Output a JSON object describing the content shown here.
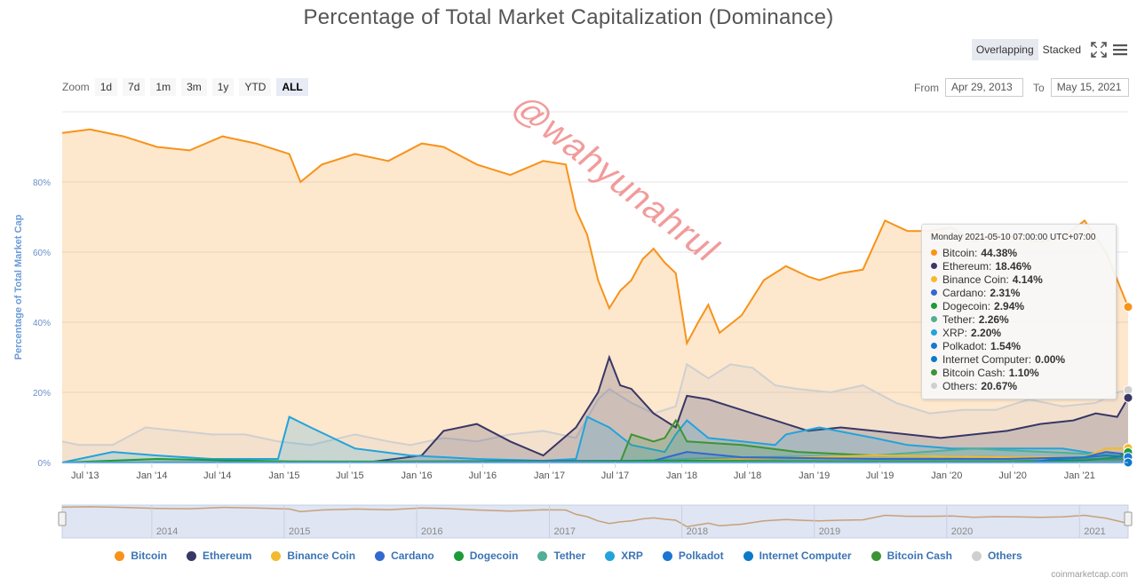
{
  "title": "Percentage of Total Market Capitalization (Dominance)",
  "modes": [
    "Overlapping",
    "Stacked"
  ],
  "active_mode": "Overlapping",
  "zoom": {
    "label": "Zoom",
    "buttons": [
      "1d",
      "7d",
      "1m",
      "3m",
      "1y",
      "YTD",
      "ALL"
    ],
    "active": "ALL"
  },
  "range": {
    "from_label": "From",
    "from_value": "Apr 29, 2013",
    "to_label": "To",
    "to_value": "May 15, 2021"
  },
  "credit": "coinmarketcap.com",
  "watermark": "@wahyunahrul",
  "navigator_years": [
    "2014",
    "2015",
    "2016",
    "2017",
    "2018",
    "2019",
    "2020",
    "2021"
  ],
  "tooltip": {
    "header": "Monday 2021-05-10 07:00:00 UTC+07:00",
    "rows": [
      {
        "name": "Bitcoin",
        "value": "44.38%"
      },
      {
        "name": "Ethereum",
        "value": "18.46%"
      },
      {
        "name": "Binance Coin",
        "value": "4.14%"
      },
      {
        "name": "Cardano",
        "value": "2.31%"
      },
      {
        "name": "Dogecoin",
        "value": "2.94%"
      },
      {
        "name": "Tether",
        "value": "2.26%"
      },
      {
        "name": "XRP",
        "value": "2.20%"
      },
      {
        "name": "Polkadot",
        "value": "1.54%"
      },
      {
        "name": "Internet Computer",
        "value": "0.00%"
      },
      {
        "name": "Bitcoin Cash",
        "value": "1.10%"
      },
      {
        "name": "Others",
        "value": "20.67%"
      }
    ]
  },
  "chart_data": {
    "type": "area",
    "ylabel": "Percentage of Total Market Cap",
    "ylim": [
      0,
      100
    ],
    "yticks": [
      "0%",
      "20%",
      "40%",
      "60%",
      "80%"
    ],
    "ytick_values": [
      0,
      20,
      40,
      60,
      80
    ],
    "xticks": [
      "Jul '13",
      "Jan '14",
      "Jul '14",
      "Jan '15",
      "Jul '15",
      "Jan '16",
      "Jul '16",
      "Jan '17",
      "Jul '17",
      "Jan '18",
      "Jul '18",
      "Jan '19",
      "Jul '19",
      "Jan '20",
      "Jul '20",
      "Jan '21"
    ],
    "xtick_values": [
      "2013-07",
      "2014-01",
      "2014-07",
      "2015-01",
      "2015-07",
      "2016-01",
      "2016-07",
      "2017-01",
      "2017-07",
      "2018-01",
      "2018-07",
      "2019-01",
      "2019-07",
      "2020-01",
      "2020-07",
      "2021-01"
    ],
    "x_range": [
      "2013-04-29",
      "2021-05-15"
    ],
    "grid": true,
    "legend_position": "bottom",
    "series": [
      {
        "name": "Bitcoin",
        "color": "#f7931a",
        "x": [
          "2013-04",
          "2013-07",
          "2013-10",
          "2014-01",
          "2014-04",
          "2014-07",
          "2014-10",
          "2015-01",
          "2015-02",
          "2015-04",
          "2015-07",
          "2015-10",
          "2016-01",
          "2016-03",
          "2016-06",
          "2016-09",
          "2016-12",
          "2017-02",
          "2017-03",
          "2017-04",
          "2017-05",
          "2017-06",
          "2017-07",
          "2017-08",
          "2017-09",
          "2017-10",
          "2017-11",
          "2017-12",
          "2018-01",
          "2018-02",
          "2018-03",
          "2018-04",
          "2018-06",
          "2018-08",
          "2018-10",
          "2018-12",
          "2019-01",
          "2019-03",
          "2019-05",
          "2019-07",
          "2019-09",
          "2019-11",
          "2020-01",
          "2020-03",
          "2020-05",
          "2020-07",
          "2020-09",
          "2020-11",
          "2021-01",
          "2021-03",
          "2021-05"
        ],
        "values": [
          94,
          95,
          93,
          90,
          89,
          93,
          91,
          88,
          80,
          85,
          88,
          86,
          91,
          90,
          85,
          82,
          86,
          85,
          72,
          65,
          52,
          44,
          49,
          52,
          58,
          61,
          57,
          54,
          34,
          40,
          45,
          37,
          42,
          52,
          56,
          53,
          52,
          54,
          55,
          69,
          66,
          66,
          67,
          63,
          65,
          64,
          63,
          64,
          69,
          60,
          44.38
        ]
      },
      {
        "name": "Ethereum",
        "color": "#383766",
        "x": [
          "2013-04",
          "2015-08",
          "2016-01",
          "2016-03",
          "2016-06",
          "2016-09",
          "2016-12",
          "2017-03",
          "2017-05",
          "2017-06",
          "2017-07",
          "2017-08",
          "2017-10",
          "2017-12",
          "2018-01",
          "2018-03",
          "2018-05",
          "2018-07",
          "2018-09",
          "2018-12",
          "2019-03",
          "2019-06",
          "2019-09",
          "2019-12",
          "2020-03",
          "2020-06",
          "2020-09",
          "2020-12",
          "2021-02",
          "2021-04",
          "2021-05"
        ],
        "values": [
          0,
          0,
          2,
          9,
          11,
          6,
          2,
          10,
          20,
          30,
          22,
          21,
          14,
          10,
          19,
          18,
          16,
          14,
          12,
          9,
          10,
          9,
          8,
          7,
          8,
          9,
          11,
          12,
          14,
          13,
          18.46
        ]
      },
      {
        "name": "Binance Coin",
        "color": "#f3ba2f",
        "x": [
          "2013-04",
          "2017-07",
          "2018-06",
          "2019-06",
          "2020-06",
          "2021-01",
          "2021-03",
          "2021-05"
        ],
        "values": [
          0,
          0,
          1,
          2,
          1.5,
          1.5,
          4,
          4.14
        ]
      },
      {
        "name": "Cardano",
        "color": "#3468d1",
        "x": [
          "2013-04",
          "2017-10",
          "2018-01",
          "2018-06",
          "2019-06",
          "2020-06",
          "2021-01",
          "2021-03",
          "2021-05"
        ],
        "values": [
          0,
          0.5,
          3,
          1.5,
          1,
          1,
          1.5,
          3,
          2.31
        ]
      },
      {
        "name": "Dogecoin",
        "color": "#1c9b3a",
        "x": [
          "2013-04",
          "2014-01",
          "2015-01",
          "2017-01",
          "2018-01",
          "2019-01",
          "2020-06",
          "2021-01",
          "2021-04",
          "2021-05"
        ],
        "values": [
          0,
          1,
          0.3,
          0.2,
          0.5,
          0.3,
          0.3,
          0.6,
          1.5,
          2.94
        ]
      },
      {
        "name": "Tether",
        "color": "#50af95",
        "x": [
          "2013-04",
          "2015-06",
          "2017-06",
          "2018-06",
          "2019-06",
          "2020-03",
          "2020-06",
          "2021-01",
          "2021-05"
        ],
        "values": [
          0,
          0.1,
          0.3,
          1.5,
          2,
          4,
          3.5,
          2.5,
          2.26
        ]
      },
      {
        "name": "XRP",
        "color": "#23a3db",
        "x": [
          "2013-04",
          "2013-09",
          "2014-01",
          "2014-06",
          "2014-12",
          "2015-01",
          "2015-03",
          "2015-07",
          "2015-12",
          "2016-06",
          "2016-12",
          "2017-03",
          "2017-04",
          "2017-06",
          "2017-08",
          "2017-11",
          "2017-12",
          "2018-01",
          "2018-03",
          "2018-06",
          "2018-09",
          "2018-10",
          "2019-01",
          "2019-06",
          "2019-09",
          "2020-01",
          "2020-06",
          "2020-11",
          "2021-02",
          "2021-05"
        ],
        "values": [
          0,
          3,
          2,
          1,
          1,
          13,
          10,
          4,
          2,
          1,
          0.5,
          1,
          13,
          10,
          5,
          3,
          8,
          12,
          7,
          6,
          5,
          8,
          10,
          7,
          5,
          4,
          4,
          4,
          2.5,
          2.2
        ]
      },
      {
        "name": "Polkadot",
        "color": "#1976d2",
        "x": [
          "2013-04",
          "2020-08",
          "2020-10",
          "2021-01",
          "2021-03",
          "2021-05"
        ],
        "values": [
          0,
          0,
          0.8,
          1.5,
          2,
          1.54
        ]
      },
      {
        "name": "Internet Computer",
        "color": "#0a7ac9",
        "x": [
          "2013-04",
          "2021-05"
        ],
        "values": [
          0,
          0
        ]
      },
      {
        "name": "Bitcoin Cash",
        "color": "#3d9436",
        "x": [
          "2013-04",
          "2017-07",
          "2017-08",
          "2017-10",
          "2017-11",
          "2017-12",
          "2018-01",
          "2018-06",
          "2018-11",
          "2019-06",
          "2020-06",
          "2021-01",
          "2021-05"
        ],
        "values": [
          0,
          0,
          8,
          6,
          7,
          12,
          6,
          5,
          3,
          2,
          1.5,
          1,
          1.1
        ]
      },
      {
        "name": "Others",
        "color": "#cfcfcf",
        "x": [
          "2013-04",
          "2013-06",
          "2013-09",
          "2013-12",
          "2014-03",
          "2014-06",
          "2014-09",
          "2014-12",
          "2015-03",
          "2015-07",
          "2015-10",
          "2015-12",
          "2016-03",
          "2016-06",
          "2016-09",
          "2016-12",
          "2017-03",
          "2017-05",
          "2017-06",
          "2017-08",
          "2017-10",
          "2017-12",
          "2018-01",
          "2018-03",
          "2018-05",
          "2018-07",
          "2018-09",
          "2018-11",
          "2019-02",
          "2019-05",
          "2019-08",
          "2019-11",
          "2020-02",
          "2020-05",
          "2020-08",
          "2020-11",
          "2021-02",
          "2021-04",
          "2021-05"
        ],
        "values": [
          6,
          5,
          5,
          10,
          9,
          8,
          8,
          6,
          5,
          8,
          6,
          5,
          7,
          6,
          8,
          9,
          7,
          18,
          21,
          17,
          14,
          16,
          28,
          24,
          28,
          27,
          22,
          21,
          20,
          22,
          17,
          14,
          15,
          15,
          18,
          16,
          17,
          20,
          20.67
        ]
      }
    ]
  }
}
